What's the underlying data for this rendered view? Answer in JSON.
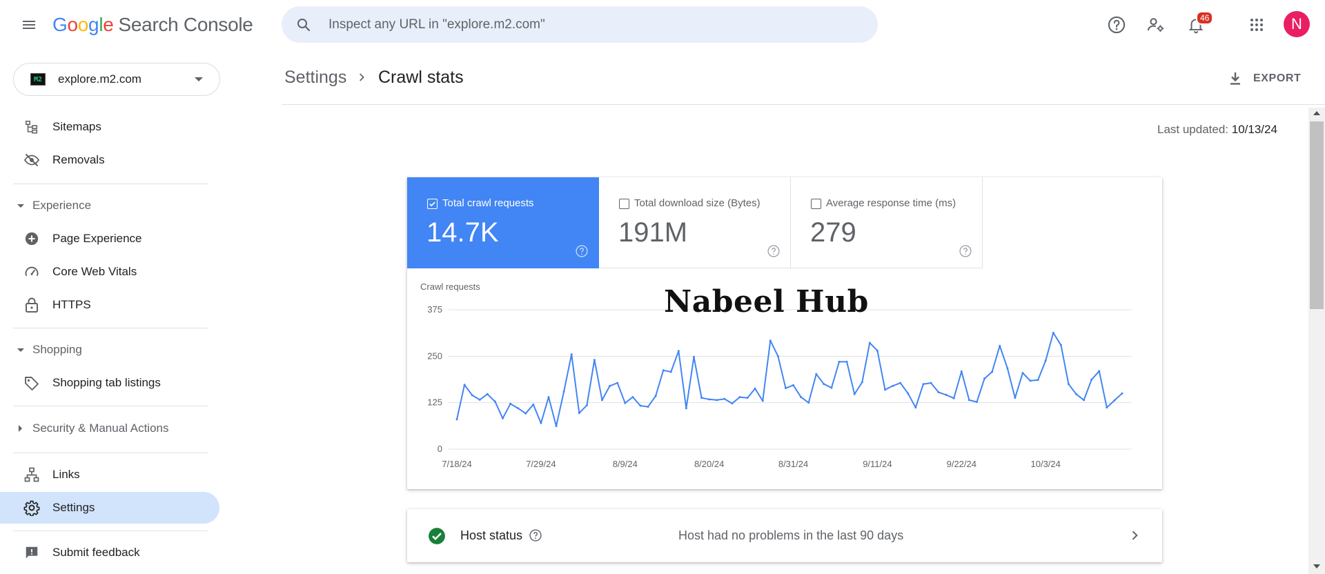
{
  "app": {
    "logo_letters": [
      "G",
      "o",
      "o",
      "g",
      "l",
      "e"
    ],
    "logo_suffix": "Search Console"
  },
  "search": {
    "placeholder": "Inspect any URL in \"explore.m2.com\""
  },
  "topbar": {
    "notifications_count": "46",
    "avatar_letter": "N"
  },
  "property": {
    "icon_text": "M2",
    "name": "explore.m2.com"
  },
  "sidebar": {
    "items": [
      {
        "label": "Sitemaps",
        "icon": "sitemap-icon"
      },
      {
        "label": "Removals",
        "icon": "removals-icon"
      }
    ],
    "sections": [
      {
        "label": "Experience",
        "expanded": true,
        "items": [
          {
            "label": "Page Experience",
            "icon": "page-experience-icon"
          },
          {
            "label": "Core Web Vitals",
            "icon": "speedometer-icon"
          },
          {
            "label": "HTTPS",
            "icon": "lock-icon"
          }
        ]
      },
      {
        "label": "Shopping",
        "expanded": true,
        "items": [
          {
            "label": "Shopping tab listings",
            "icon": "tag-icon"
          }
        ]
      },
      {
        "label": "Security & Manual Actions",
        "expanded": false,
        "items": []
      }
    ],
    "bottom_items": [
      {
        "label": "Links",
        "icon": "links-icon"
      },
      {
        "label": "Settings",
        "icon": "gear-icon",
        "active": true
      }
    ],
    "feedback": {
      "label": "Submit feedback",
      "icon": "feedback-icon"
    }
  },
  "breadcrumb": {
    "parent": "Settings",
    "current": "Crawl stats"
  },
  "export_label": "EXPORT",
  "last_updated": {
    "label": "Last updated:",
    "value": "10/13/24"
  },
  "metrics": [
    {
      "label": "Total crawl requests",
      "value": "14.7K",
      "selected": true
    },
    {
      "label": "Total download size (Bytes)",
      "value": "191M",
      "selected": false
    },
    {
      "label": "Average response time (ms)",
      "value": "279",
      "selected": false
    }
  ],
  "watermark": "Nabeel Hub",
  "host_status": {
    "label": "Host status",
    "message": "Host had no problems in the last 90 days"
  },
  "colors": {
    "accent": "#4285f4",
    "active_nav": "#d2e3fc",
    "ok_green": "#188038",
    "line": "#4285f4"
  },
  "chart_data": {
    "type": "line",
    "ylabel": "Crawl requests",
    "yticks": [
      0,
      125,
      250,
      375
    ],
    "ylim": [
      0,
      375
    ],
    "xtick_labels": [
      "7/18/24",
      "7/29/24",
      "8/9/24",
      "8/20/24",
      "8/31/24",
      "9/11/24",
      "9/22/24",
      "10/3/24"
    ],
    "grid": true,
    "series": [
      {
        "values": [
          80,
          173,
          145,
          133,
          148,
          128,
          83,
          122,
          110,
          96,
          120,
          70,
          140,
          62,
          155,
          255,
          97,
          118,
          240,
          132,
          170,
          178,
          124,
          140,
          117,
          114,
          143,
          212,
          208,
          264,
          110,
          248,
          138,
          134,
          132,
          135,
          123,
          140,
          138,
          163,
          130,
          292,
          250,
          164,
          172,
          140,
          125,
          202,
          175,
          165,
          235,
          235,
          148,
          180,
          286,
          265,
          160,
          170,
          178,
          150,
          112,
          175,
          178,
          153,
          146,
          137,
          209,
          132,
          127,
          190,
          208,
          278,
          218,
          138,
          205,
          184,
          186,
          238,
          313,
          280,
          175,
          148,
          132,
          187,
          210,
          112,
          131,
          150
        ]
      }
    ]
  }
}
